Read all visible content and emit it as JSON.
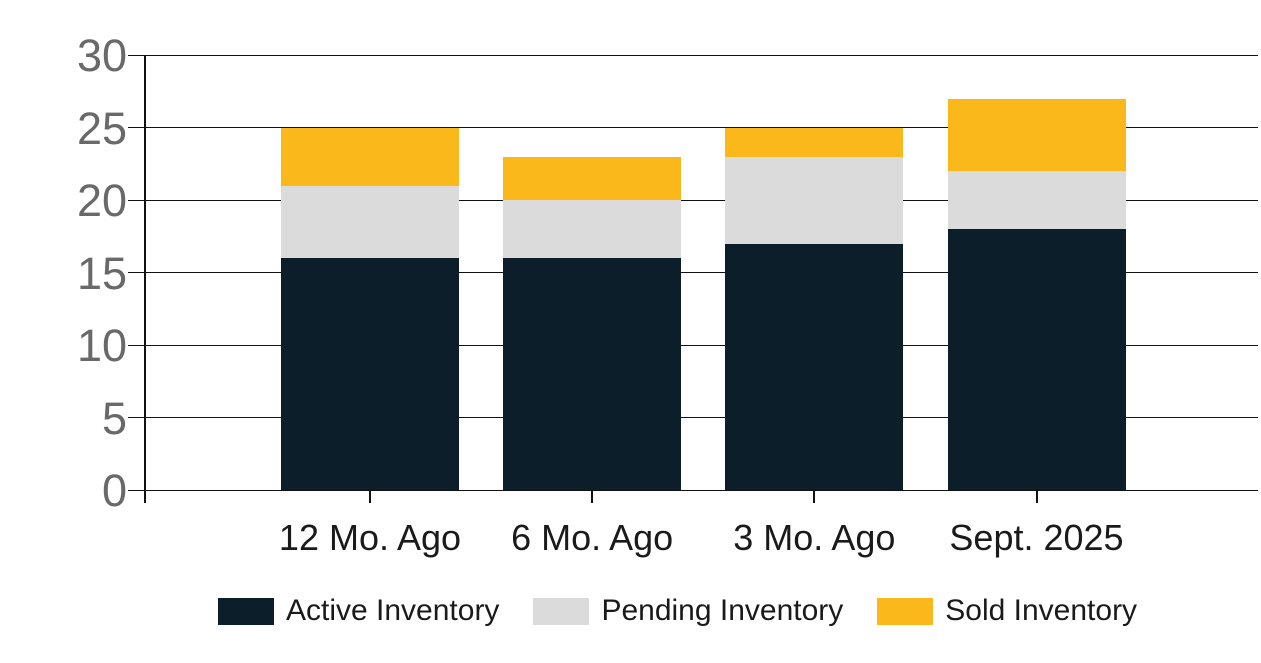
{
  "chart_data": {
    "type": "bar",
    "stacked": true,
    "title": "",
    "xlabel": "",
    "ylabel": "",
    "categories": [
      "12 Mo. Ago",
      "6 Mo. Ago",
      "3 Mo. Ago",
      "Sept. 2025"
    ],
    "series": [
      {
        "name": "Active Inventory",
        "color": "#0D1E2B",
        "values": [
          16,
          16,
          17,
          18
        ]
      },
      {
        "name": "Pending Inventory",
        "color": "#DBDBDB",
        "values": [
          5,
          4,
          6,
          4
        ]
      },
      {
        "name": "Sold Inventory",
        "color": "#FBB81A",
        "values": [
          4,
          3,
          2,
          5
        ]
      }
    ],
    "stack_totals": [
      25,
      23,
      25,
      27
    ],
    "ylim": [
      0,
      30
    ],
    "yticks": [
      0,
      5,
      10,
      15,
      20,
      25,
      30
    ],
    "grid": true,
    "legend_position": "bottom",
    "colors": {
      "axis_tick_label": "#696969",
      "grid_line": "#111111",
      "category_label": "#1A1A1A",
      "background": "#FFFFFF"
    }
  }
}
